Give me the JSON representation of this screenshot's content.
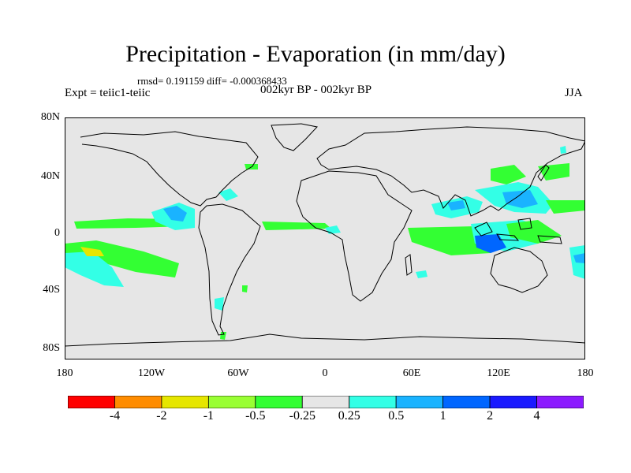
{
  "title": "Precipitation - Evaporation (in mm/day)",
  "stats": "rmsd= 0.191159 diff= -0.000368433",
  "subtitle": "002kyr BP - 002kyr BP",
  "experiment": "Expt = teiic1-teiic",
  "season": "JJA",
  "map": {
    "background": "#e6e6e6",
    "y_ticks": [
      "80N",
      "40N",
      "0",
      "40S",
      "80S"
    ],
    "x_ticks": [
      "180",
      "120W",
      "60W",
      "0",
      "60E",
      "120E",
      "180"
    ]
  },
  "colorbar": {
    "colors": [
      "#ff0000",
      "#ff8c00",
      "#e6e600",
      "#99ff33",
      "#33ff33",
      "#e6e6e6",
      "#33ffe6",
      "#1ab3ff",
      "#0066ff",
      "#1a1aff",
      "#8c1aff"
    ],
    "labels": [
      "-4",
      "-2",
      "-1",
      "-0.5",
      "-0.25",
      "0.25",
      "0.5",
      "1",
      "2",
      "4"
    ]
  }
}
